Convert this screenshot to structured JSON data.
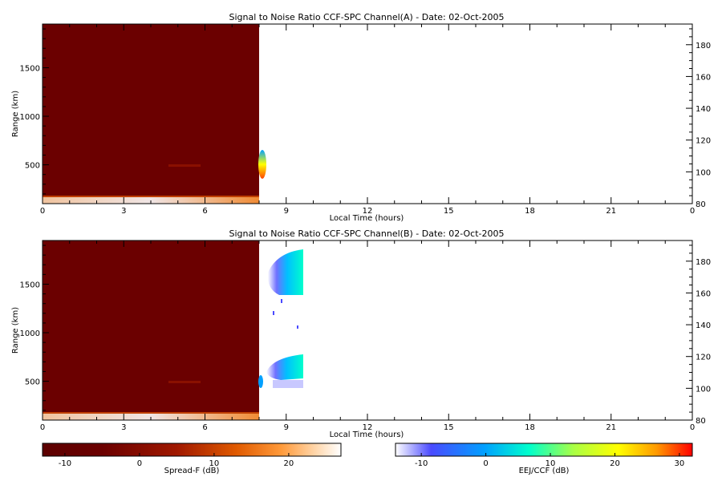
{
  "chart_data": [
    {
      "type": "heatmap",
      "title": "Signal to Noise Ratio CCF-SPC Channel(A) - Date: 02-Oct-2005",
      "xlabel": "Local Time (hours)",
      "ylabel": "Range (km)",
      "xlim": [
        0,
        24
      ],
      "ylim": [
        100,
        1950
      ],
      "y2lim": [
        80,
        193
      ],
      "xticks": [
        "0",
        "3",
        "6",
        "9",
        "12",
        "15",
        "18",
        "21",
        "0"
      ],
      "yticks": [
        "500",
        "1000",
        "1500"
      ],
      "y2ticks": [
        "80",
        "100",
        "120",
        "140",
        "160",
        "180"
      ],
      "regions": [
        {
          "name": "Spread-F",
          "x": [
            0,
            7.95
          ],
          "y": [
            100,
            1950
          ],
          "value_db": -12
        },
        {
          "name": "Spread-F",
          "x": [
            0,
            7.95
          ],
          "y": [
            100,
            130
          ],
          "value_db": 20
        },
        {
          "name": "EEJ/CCF",
          "x": [
            7.95,
            8.15
          ],
          "y": [
            400,
            700
          ],
          "value_db": 10
        }
      ]
    },
    {
      "type": "heatmap",
      "title": "Signal to Noise Ratio CCF-SPC Channel(B) - Date: 02-Oct-2005",
      "xlabel": "Local Time (hours)",
      "ylabel": "Range (km)",
      "xlim": [
        0,
        24
      ],
      "ylim": [
        100,
        1950
      ],
      "y2lim": [
        80,
        193
      ],
      "xticks": [
        "0",
        "3",
        "6",
        "9",
        "12",
        "15",
        "18",
        "21",
        "0"
      ],
      "yticks": [
        "500",
        "1000",
        "1500"
      ],
      "y2ticks": [
        "80",
        "100",
        "120",
        "140",
        "160",
        "180"
      ],
      "regions": [
        {
          "name": "Spread-F",
          "x": [
            0,
            7.95
          ],
          "y": [
            100,
            1950
          ],
          "value_db": -12
        },
        {
          "name": "Spread-F",
          "x": [
            0,
            7.95
          ],
          "y": [
            100,
            130
          ],
          "value_db": 20
        },
        {
          "name": "EEJ/CCF",
          "x": [
            8.2,
            9.6
          ],
          "y": [
            1450,
            1870
          ],
          "value_db": 2
        },
        {
          "name": "EEJ/CCF",
          "x": [
            8.2,
            9.6
          ],
          "y": [
            360,
            720
          ],
          "value_db": 2
        },
        {
          "name": "EEJ/CCF",
          "x": [
            7.95,
            8.1
          ],
          "y": [
            420,
            560
          ],
          "value_db": 0
        }
      ]
    }
  ],
  "colorbars": [
    {
      "label": "Spread-F (dB)",
      "ticks": [
        "-10",
        "0",
        "10",
        "20"
      ],
      "range": [
        -13,
        27
      ],
      "colors": [
        "#5c0000",
        "#6b0000",
        "#a01800",
        "#e05a00",
        "#ff9a3a",
        "#ffd9b0",
        "#ffffff"
      ]
    },
    {
      "label": "EEJ/CCF (dB)",
      "ticks": [
        "-10",
        "0",
        "10",
        "20",
        "30"
      ],
      "range": [
        -14,
        32
      ],
      "colors": [
        "#ffffff",
        "#4a4aff",
        "#00a0ff",
        "#00ffcc",
        "#aaff44",
        "#ffff00",
        "#ff9900",
        "#ff0000"
      ]
    }
  ]
}
